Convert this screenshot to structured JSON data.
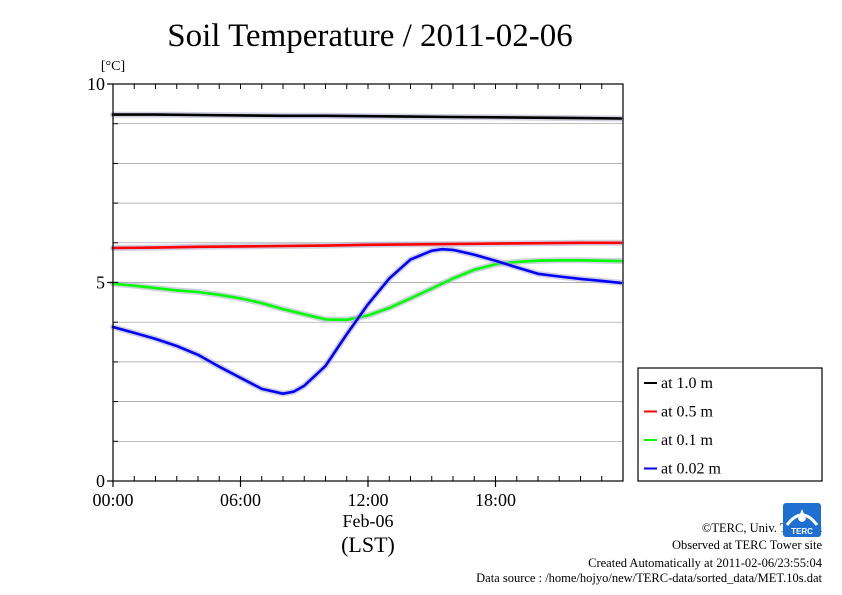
{
  "chart_data": {
    "type": "line",
    "title": "Soil Temperature / 2011-02-06",
    "ylabel": "[°C]",
    "ylim": [
      0,
      10
    ],
    "yticks": [
      {
        "value": 0,
        "label": "0"
      },
      {
        "value": 5,
        "label": "5"
      },
      {
        "value": 10,
        "label": "10"
      }
    ],
    "xlim": [
      0,
      24
    ],
    "xticks": [
      {
        "value": 0,
        "label": "00:00"
      },
      {
        "value": 6,
        "label": "06:00"
      },
      {
        "value": 12,
        "label": "12:00"
      },
      {
        "value": 18,
        "label": "18:00"
      }
    ],
    "xdate_label": "Feb-06",
    "xunit_label": "(LST)",
    "grid": true,
    "legend_position": "right-bottom",
    "series": [
      {
        "name": "at 1.0 m",
        "color": "#000000",
        "x": [
          0,
          2,
          4,
          6,
          8,
          10,
          12,
          14,
          16,
          18,
          20,
          22,
          23.9
        ],
        "y": [
          9.23,
          9.23,
          9.22,
          9.21,
          9.2,
          9.2,
          9.19,
          9.18,
          9.17,
          9.16,
          9.15,
          9.14,
          9.13
        ]
      },
      {
        "name": "at 0.5 m",
        "color": "#ff0000",
        "x": [
          0,
          2,
          4,
          6,
          8,
          10,
          12,
          14,
          16,
          18,
          20,
          22,
          23.9
        ],
        "y": [
          5.87,
          5.88,
          5.9,
          5.91,
          5.92,
          5.93,
          5.95,
          5.96,
          5.97,
          5.98,
          5.99,
          6.0,
          6.0
        ]
      },
      {
        "name": "at 0.1 m",
        "color": "#00ff00",
        "x": [
          0,
          1,
          2,
          3,
          4,
          5,
          6,
          7,
          8,
          9,
          10,
          11,
          12,
          13,
          14,
          15,
          16,
          17,
          18,
          19,
          20,
          21,
          22,
          23,
          23.9
        ],
        "y": [
          4.97,
          4.92,
          4.86,
          4.8,
          4.76,
          4.69,
          4.6,
          4.48,
          4.33,
          4.2,
          4.07,
          4.06,
          4.17,
          4.36,
          4.6,
          4.85,
          5.1,
          5.32,
          5.46,
          5.52,
          5.55,
          5.56,
          5.56,
          5.55,
          5.54
        ]
      },
      {
        "name": "at 0.02 m",
        "color": "#0000ff",
        "x": [
          0,
          1,
          2,
          3,
          4,
          5,
          6,
          7,
          8,
          8.5,
          9,
          10,
          11,
          12,
          13,
          14,
          15,
          15.5,
          16,
          17,
          18,
          19,
          20,
          21,
          22,
          23,
          23.9
        ],
        "y": [
          3.88,
          3.73,
          3.58,
          3.4,
          3.18,
          2.88,
          2.6,
          2.32,
          2.2,
          2.25,
          2.4,
          2.9,
          3.7,
          4.45,
          5.1,
          5.58,
          5.8,
          5.84,
          5.82,
          5.7,
          5.55,
          5.38,
          5.22,
          5.15,
          5.09,
          5.04,
          4.99
        ]
      }
    ]
  },
  "credits": {
    "copyright": "©TERC, Univ. Tsukuba",
    "observed": "Observed at TERC Tower site",
    "created": "Created Automatically at 2011-02-06/23:55:04",
    "source": "Data source : /home/hojyo/new/TERC-data/sorted_data/MET.10s.dat"
  },
  "logo": {
    "text": "TERC"
  }
}
